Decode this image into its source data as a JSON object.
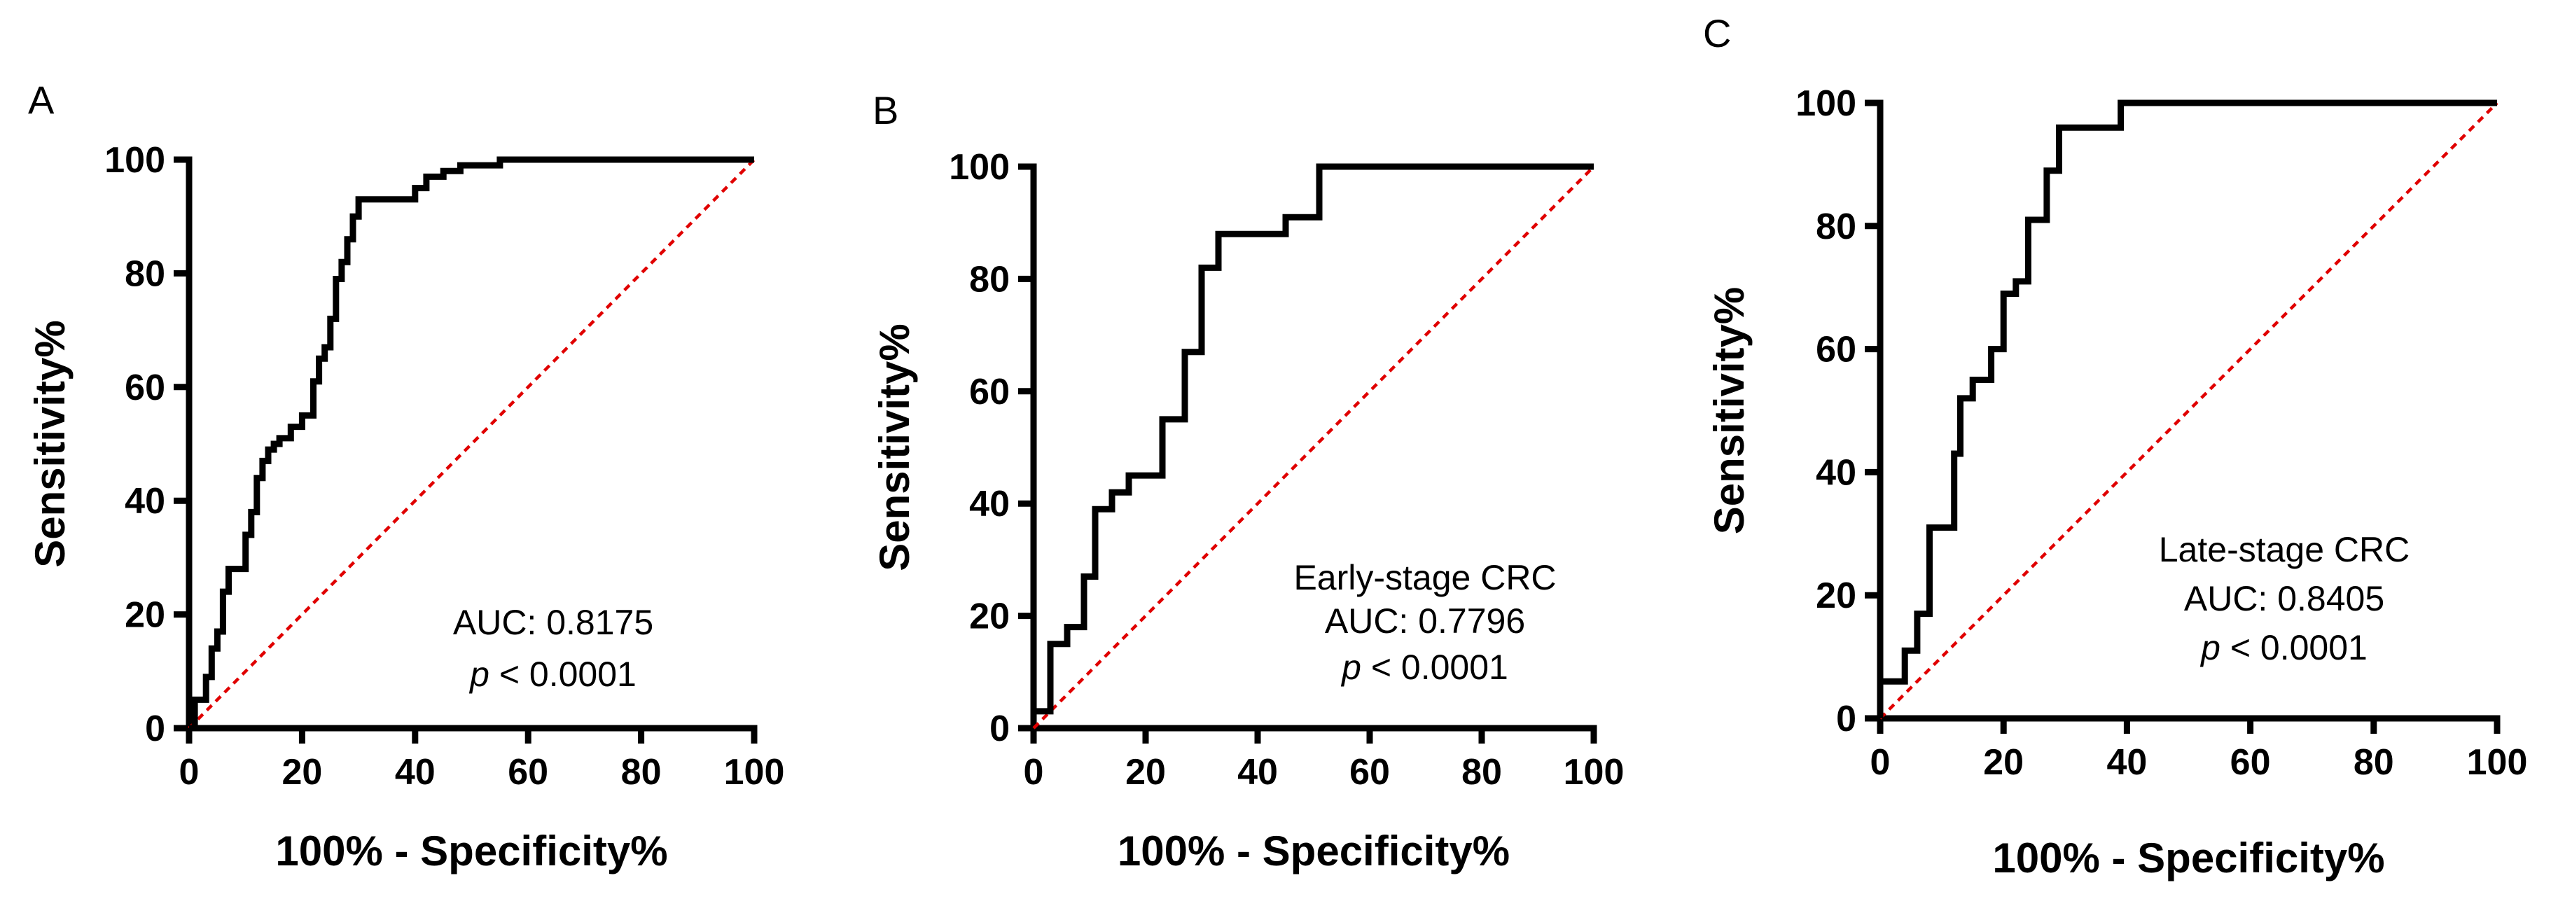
{
  "chart_data": [
    {
      "type": "line",
      "panel": "A",
      "xlabel": "100% - Specificity%",
      "ylabel": "Sensitivity%",
      "xlim": [
        0,
        100
      ],
      "ylim": [
        0,
        100
      ],
      "xticks": [
        "0",
        "20",
        "40",
        "60",
        "80",
        "100"
      ],
      "yticks": [
        "0",
        "20",
        "40",
        "60",
        "80",
        "100"
      ],
      "annotation": {
        "subtitle": "",
        "auc": "AUC: 0.8175",
        "p_italic": "p",
        "p_rest": " < 0.0001"
      },
      "reference_line": {
        "style": "dashed",
        "color": "#e00000",
        "x": [
          0,
          100
        ],
        "y": [
          0,
          100
        ]
      },
      "series": [
        {
          "name": "ROC",
          "x": [
            0,
            1,
            1,
            3,
            3,
            4,
            4,
            5,
            5,
            6,
            6,
            7,
            7,
            8,
            8,
            10,
            10,
            11,
            11,
            12,
            12,
            13,
            13,
            14,
            14,
            15,
            15,
            16,
            16,
            18,
            18,
            20,
            20,
            22,
            22,
            23,
            23,
            24,
            24,
            25,
            25,
            26,
            26,
            27,
            27,
            28,
            28,
            29,
            29,
            30,
            30,
            31,
            31,
            40,
            40,
            42,
            42,
            45,
            45,
            48,
            48,
            55,
            55,
            100
          ],
          "y": [
            0,
            0,
            5,
            5,
            9,
            9,
            14,
            14,
            17,
            17,
            24,
            24,
            28,
            28,
            28,
            28,
            34,
            34,
            38,
            38,
            44,
            44,
            47,
            47,
            49,
            49,
            50,
            50,
            51,
            51,
            53,
            53,
            55,
            55,
            61,
            61,
            65,
            65,
            67,
            67,
            72,
            72,
            79,
            79,
            82,
            82,
            86,
            86,
            90,
            90,
            93,
            93,
            93,
            93,
            95,
            95,
            97,
            97,
            98,
            98,
            99,
            99,
            100,
            100
          ]
        }
      ]
    },
    {
      "type": "line",
      "panel": "B",
      "xlabel": "100% - Specificity%",
      "ylabel": "Sensitivity%",
      "xlim": [
        0,
        100
      ],
      "ylim": [
        0,
        100
      ],
      "xticks": [
        "0",
        "20",
        "40",
        "60",
        "80",
        "100"
      ],
      "yticks": [
        "0",
        "20",
        "40",
        "60",
        "80",
        "100"
      ],
      "annotation": {
        "subtitle": "Early-stage CRC",
        "auc": "AUC: 0.7796",
        "p_italic": "p",
        "p_rest": " < 0.0001"
      },
      "reference_line": {
        "style": "dashed",
        "color": "#e00000",
        "x": [
          0,
          100
        ],
        "y": [
          0,
          100
        ]
      },
      "series": [
        {
          "name": "ROC",
          "x": [
            0,
            3,
            3,
            6,
            6,
            9,
            9,
            11,
            11,
            14,
            14,
            17,
            17,
            23,
            23,
            27,
            27,
            30,
            30,
            33,
            33,
            45,
            45,
            51,
            51,
            100
          ],
          "y": [
            3,
            3,
            15,
            15,
            18,
            18,
            27,
            27,
            39,
            39,
            42,
            42,
            45,
            45,
            55,
            55,
            67,
            67,
            82,
            82,
            88,
            88,
            91,
            91,
            100,
            100
          ]
        }
      ]
    },
    {
      "type": "line",
      "panel": "C",
      "xlabel": "100% - Specificity%",
      "ylabel": "Sensitivity%",
      "xlim": [
        0,
        100
      ],
      "ylim": [
        0,
        100
      ],
      "xticks": [
        "0",
        "20",
        "40",
        "60",
        "80",
        "100"
      ],
      "yticks": [
        "0",
        "20",
        "40",
        "60",
        "80",
        "100"
      ],
      "annotation": {
        "subtitle": "Late-stage CRC",
        "auc": "AUC: 0.8405",
        "p_italic": "p",
        "p_rest": " < 0.0001"
      },
      "reference_line": {
        "style": "dashed",
        "color": "#e00000",
        "x": [
          0,
          100
        ],
        "y": [
          0,
          100
        ]
      },
      "series": [
        {
          "name": "ROC",
          "x": [
            0,
            0,
            4,
            4,
            6,
            6,
            8,
            8,
            12,
            12,
            13,
            13,
            15,
            15,
            18,
            18,
            20,
            20,
            22,
            22,
            24,
            24,
            27,
            27,
            29,
            29,
            39,
            39,
            100
          ],
          "y": [
            0,
            6,
            6,
            11,
            11,
            17,
            17,
            31,
            31,
            43,
            43,
            52,
            52,
            55,
            55,
            60,
            60,
            69,
            69,
            71,
            71,
            81,
            81,
            89,
            89,
            96,
            96,
            100,
            100
          ]
        }
      ]
    }
  ]
}
